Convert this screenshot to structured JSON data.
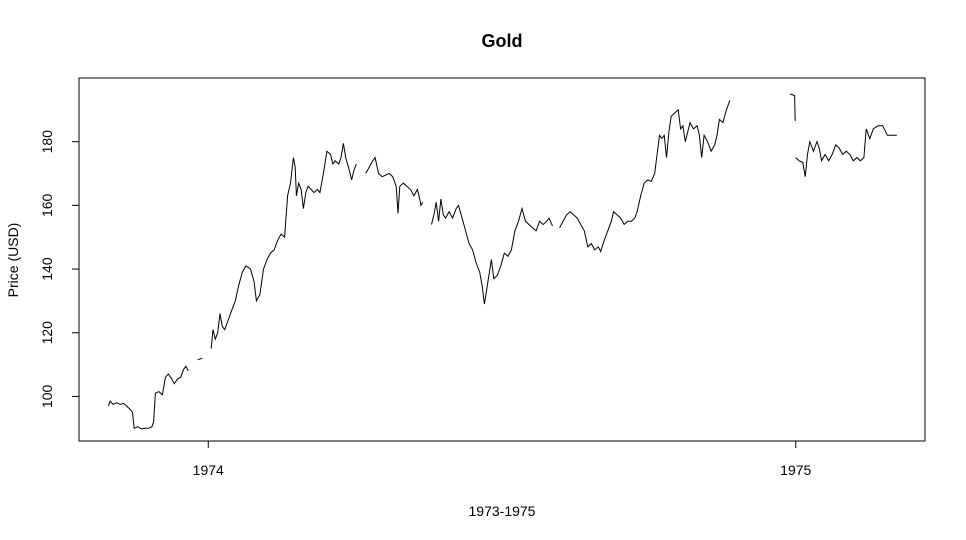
{
  "chart_data": {
    "type": "line",
    "title": "Gold",
    "xlabel": "1973-1975",
    "ylabel": "Price (USD)",
    "x_ticks": [
      {
        "value": 1974,
        "label": "1974"
      },
      {
        "value": 1975,
        "label": "1975"
      }
    ],
    "y_ticks": [
      {
        "value": 100,
        "label": "100"
      },
      {
        "value": 120,
        "label": "120"
      },
      {
        "value": 140,
        "label": "140"
      },
      {
        "value": 160,
        "label": "160"
      },
      {
        "value": 180,
        "label": "180"
      }
    ],
    "xlim": [
      1973.78,
      1975.22
    ],
    "ylim": [
      86,
      200
    ],
    "grid": false,
    "series": [
      {
        "segments": [
          [
            [
              1973.83,
              97.0
            ],
            [
              1973.833,
              98.5
            ],
            [
              1973.838,
              97.5
            ],
            [
              1973.844,
              98.0
            ],
            [
              1973.85,
              97.5
            ],
            [
              1973.856,
              97.8
            ],
            [
              1973.862,
              96.8
            ],
            [
              1973.867,
              96.0
            ],
            [
              1973.871,
              95.0
            ],
            [
              1973.874,
              90.0
            ],
            [
              1973.88,
              90.5
            ],
            [
              1973.886,
              89.8
            ],
            [
              1973.892,
              90.0
            ],
            [
              1973.898,
              90.0
            ],
            [
              1973.904,
              90.5
            ],
            [
              1973.907,
              92.0
            ],
            [
              1973.91,
              101.0
            ],
            [
              1973.916,
              101.5
            ],
            [
              1973.922,
              100.5
            ],
            [
              1973.927,
              106.0
            ],
            [
              1973.932,
              107.0
            ],
            [
              1973.938,
              105.5
            ],
            [
              1973.942,
              104.0
            ],
            [
              1973.948,
              105.5
            ],
            [
              1973.953,
              106.0
            ],
            [
              1973.958,
              108.5
            ],
            [
              1973.962,
              109.5
            ],
            [
              1973.966,
              108.0
            ]
          ],
          [
            [
              1973.982,
              111.5
            ],
            [
              1973.99,
              112.0
            ]
          ],
          [
            [
              1974.005,
              115.0
            ],
            [
              1974.008,
              121.0
            ],
            [
              1974.012,
              118.0
            ],
            [
              1974.016,
              120.0
            ],
            [
              1974.02,
              126.0
            ],
            [
              1974.024,
              122.0
            ],
            [
              1974.028,
              121.0
            ],
            [
              1974.034,
              124.0
            ],
            [
              1974.04,
              127.0
            ],
            [
              1974.046,
              130.0
            ],
            [
              1974.052,
              135.0
            ],
            [
              1974.058,
              139.0
            ],
            [
              1974.064,
              141.0
            ],
            [
              1974.072,
              140.0
            ],
            [
              1974.078,
              136.0
            ],
            [
              1974.082,
              130.0
            ],
            [
              1974.088,
              132.0
            ],
            [
              1974.094,
              140.0
            ],
            [
              1974.1,
              143.0
            ],
            [
              1974.106,
              145.0
            ],
            [
              1974.112,
              146.0
            ],
            [
              1974.118,
              149.0
            ],
            [
              1974.124,
              151.0
            ],
            [
              1974.13,
              150.0
            ],
            [
              1974.135,
              163.0
            ],
            [
              1974.14,
              167.0
            ],
            [
              1974.145,
              175.0
            ],
            [
              1974.148,
              172.0
            ],
            [
              1974.15,
              163.0
            ],
            [
              1974.154,
              167.0
            ],
            [
              1974.158,
              165.0
            ],
            [
              1974.162,
              159.0
            ],
            [
              1974.166,
              164.0
            ],
            [
              1974.17,
              166.0
            ],
            [
              1974.175,
              165.0
            ],
            [
              1974.18,
              164.0
            ],
            [
              1974.186,
              165.0
            ],
            [
              1974.19,
              164.0
            ],
            [
              1974.196,
              170.0
            ],
            [
              1974.202,
              177.0
            ],
            [
              1974.208,
              176.0
            ],
            [
              1974.212,
              173.0
            ],
            [
              1974.216,
              174.0
            ],
            [
              1974.222,
              173.0
            ],
            [
              1974.226,
              175.0
            ],
            [
              1974.23,
              179.5
            ],
            [
              1974.234,
              175.0
            ],
            [
              1974.24,
              171.0
            ],
            [
              1974.244,
              168.0
            ],
            [
              1974.248,
              171.0
            ],
            [
              1974.252,
              173.0
            ]
          ],
          [
            [
              1974.268,
              170.0
            ],
            [
              1974.274,
              172.0
            ],
            [
              1974.28,
              174.0
            ],
            [
              1974.284,
              175.0
            ],
            [
              1974.29,
              170.0
            ],
            [
              1974.296,
              169.0
            ],
            [
              1974.302,
              169.5
            ],
            [
              1974.308,
              170.0
            ],
            [
              1974.314,
              169.0
            ],
            [
              1974.32,
              166.0
            ],
            [
              1974.323,
              157.5
            ],
            [
              1974.326,
              166.0
            ],
            [
              1974.332,
              167.0
            ],
            [
              1974.338,
              166.0
            ],
            [
              1974.344,
              165.0
            ],
            [
              1974.35,
              163.0
            ],
            [
              1974.356,
              165.0
            ],
            [
              1974.36,
              162.0
            ],
            [
              1974.362,
              160.0
            ],
            [
              1974.365,
              161.0
            ]
          ],
          [
            [
              1974.38,
              154.0
            ],
            [
              1974.384,
              157.0
            ],
            [
              1974.388,
              161.0
            ],
            [
              1974.392,
              155.0
            ],
            [
              1974.396,
              162.0
            ],
            [
              1974.4,
              157.0
            ],
            [
              1974.404,
              156.0
            ],
            [
              1974.41,
              158.0
            ],
            [
              1974.416,
              156.0
            ],
            [
              1974.422,
              159.0
            ],
            [
              1974.426,
              160.0
            ],
            [
              1974.432,
              156.0
            ],
            [
              1974.438,
              152.0
            ],
            [
              1974.444,
              148.0
            ],
            [
              1974.45,
              146.0
            ],
            [
              1974.456,
              142.0
            ],
            [
              1974.462,
              139.0
            ],
            [
              1974.466,
              135.0
            ],
            [
              1974.47,
              129.0
            ],
            [
              1974.476,
              136.0
            ],
            [
              1974.482,
              143.0
            ],
            [
              1974.486,
              137.0
            ],
            [
              1974.492,
              138.0
            ],
            [
              1974.498,
              141.0
            ],
            [
              1974.504,
              145.0
            ],
            [
              1974.51,
              144.0
            ],
            [
              1974.516,
              146.0
            ],
            [
              1974.522,
              152.0
            ],
            [
              1974.528,
              155.0
            ],
            [
              1974.534,
              159.0
            ],
            [
              1974.54,
              155.0
            ],
            [
              1974.546,
              154.0
            ],
            [
              1974.552,
              153.0
            ],
            [
              1974.558,
              152.0
            ],
            [
              1974.564,
              155.0
            ],
            [
              1974.57,
              154.0
            ],
            [
              1974.576,
              155.0
            ],
            [
              1974.58,
              156.0
            ],
            [
              1974.586,
              153.5
            ]
          ],
          [
            [
              1974.598,
              153.0
            ],
            [
              1974.604,
              155.0
            ],
            [
              1974.61,
              157.0
            ],
            [
              1974.616,
              158.0
            ],
            [
              1974.622,
              157.0
            ],
            [
              1974.628,
              156.0
            ],
            [
              1974.634,
              154.0
            ],
            [
              1974.64,
              152.0
            ],
            [
              1974.646,
              147.0
            ],
            [
              1974.652,
              148.0
            ],
            [
              1974.658,
              146.0
            ],
            [
              1974.664,
              147.0
            ],
            [
              1974.668,
              145.5
            ],
            [
              1974.674,
              149.0
            ],
            [
              1974.68,
              152.0
            ],
            [
              1974.686,
              155.0
            ],
            [
              1974.69,
              158.0
            ],
            [
              1974.696,
              157.0
            ],
            [
              1974.702,
              156.0
            ],
            [
              1974.708,
              154.0
            ],
            [
              1974.714,
              155.0
            ],
            [
              1974.72,
              155.0
            ],
            [
              1974.726,
              156.0
            ],
            [
              1974.73,
              158.0
            ],
            [
              1974.736,
              163.0
            ],
            [
              1974.742,
              167.0
            ],
            [
              1974.748,
              168.0
            ],
            [
              1974.754,
              167.5
            ],
            [
              1974.76,
              170.0
            ],
            [
              1974.764,
              176.0
            ],
            [
              1974.768,
              182.0
            ],
            [
              1974.772,
              181.0
            ],
            [
              1974.776,
              182.0
            ],
            [
              1974.78,
              175.0
            ],
            [
              1974.784,
              183.0
            ],
            [
              1974.788,
              188.0
            ],
            [
              1974.794,
              189.0
            ],
            [
              1974.8,
              190.0
            ],
            [
              1974.804,
              184.0
            ],
            [
              1974.808,
              185.0
            ],
            [
              1974.812,
              180.0
            ],
            [
              1974.816,
              183.0
            ],
            [
              1974.82,
              186.0
            ],
            [
              1974.826,
              184.0
            ],
            [
              1974.832,
              185.0
            ],
            [
              1974.836,
              182.0
            ],
            [
              1974.84,
              175.0
            ],
            [
              1974.844,
              182.0
            ],
            [
              1974.85,
              180.0
            ],
            [
              1974.856,
              177.0
            ],
            [
              1974.862,
              179.0
            ],
            [
              1974.866,
              182.0
            ],
            [
              1974.87,
              187.0
            ],
            [
              1974.876,
              186.0
            ],
            [
              1974.882,
              190.0
            ],
            [
              1974.888,
              193.0
            ]
          ],
          [
            [
              1974.99,
              195.0
            ],
            [
              1974.998,
              194.5
            ],
            [
              1974.999,
              186.5
            ]
          ],
          [
            [
              1975.0,
              175.0
            ],
            [
              1975.006,
              174.0
            ],
            [
              1975.012,
              173.5
            ],
            [
              1975.016,
              169.0
            ],
            [
              1975.02,
              176.0
            ],
            [
              1975.024,
              180.0
            ],
            [
              1975.03,
              177.0
            ],
            [
              1975.036,
              180.0
            ],
            [
              1975.04,
              178.0
            ],
            [
              1975.044,
              174.0
            ],
            [
              1975.05,
              176.0
            ],
            [
              1975.056,
              174.0
            ],
            [
              1975.062,
              176.0
            ],
            [
              1975.068,
              179.0
            ],
            [
              1975.074,
              178.0
            ],
            [
              1975.08,
              176.0
            ],
            [
              1975.086,
              177.0
            ],
            [
              1975.092,
              176.0
            ],
            [
              1975.098,
              174.0
            ],
            [
              1975.104,
              175.0
            ],
            [
              1975.11,
              174.0
            ],
            [
              1975.116,
              175.0
            ],
            [
              1975.12,
              184.0
            ],
            [
              1975.126,
              181.0
            ],
            [
              1975.132,
              184.0
            ],
            [
              1975.14,
              185.0
            ],
            [
              1975.148,
              185.0
            ],
            [
              1975.156,
              182.0
            ],
            [
              1975.164,
              182.0
            ],
            [
              1975.172,
              182.0
            ]
          ]
        ]
      }
    ],
    "colors": {
      "line": "#000000",
      "axis": "#000000",
      "background": "#ffffff"
    }
  }
}
